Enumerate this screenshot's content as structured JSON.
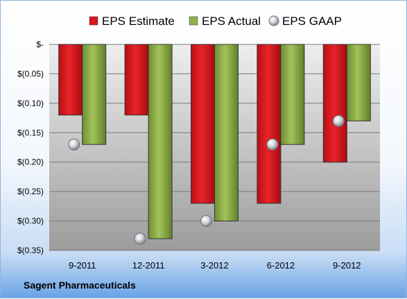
{
  "company_name": "Sagent Pharmaceuticals",
  "colors": {
    "estimate": "#d9161c",
    "actual": "#8fb04a",
    "gaap": "#c8ccd2",
    "plot_top": "#eeeeee",
    "plot_bottom": "#9c9c9c"
  },
  "chart_data": {
    "type": "bar",
    "title": "",
    "xlabel": "",
    "ylabel": "",
    "categories": [
      "9-2011",
      "12-2011",
      "3-2012",
      "6-2012",
      "9-2012"
    ],
    "series": [
      {
        "name": "EPS Estimate",
        "kind": "bar",
        "values": [
          -0.12,
          -0.12,
          -0.27,
          -0.27,
          -0.2
        ]
      },
      {
        "name": "EPS Actual",
        "kind": "bar",
        "values": [
          -0.17,
          -0.33,
          -0.3,
          -0.17,
          -0.13
        ]
      },
      {
        "name": "EPS GAAP",
        "kind": "marker",
        "values": [
          -0.17,
          -0.33,
          -0.3,
          -0.17,
          -0.13
        ]
      }
    ],
    "ylim": [
      -0.35,
      0
    ],
    "yticks": [
      0,
      -0.05,
      -0.1,
      -0.15,
      -0.2,
      -0.25,
      -0.3,
      -0.35
    ],
    "ytick_labels": [
      "$-",
      "$(0.05)",
      "$(0.10)",
      "$(0.15)",
      "$(0.20)",
      "$(0.25)",
      "$(0.30)",
      "$(0.35)"
    ],
    "grid": true,
    "legend_position": "top"
  }
}
